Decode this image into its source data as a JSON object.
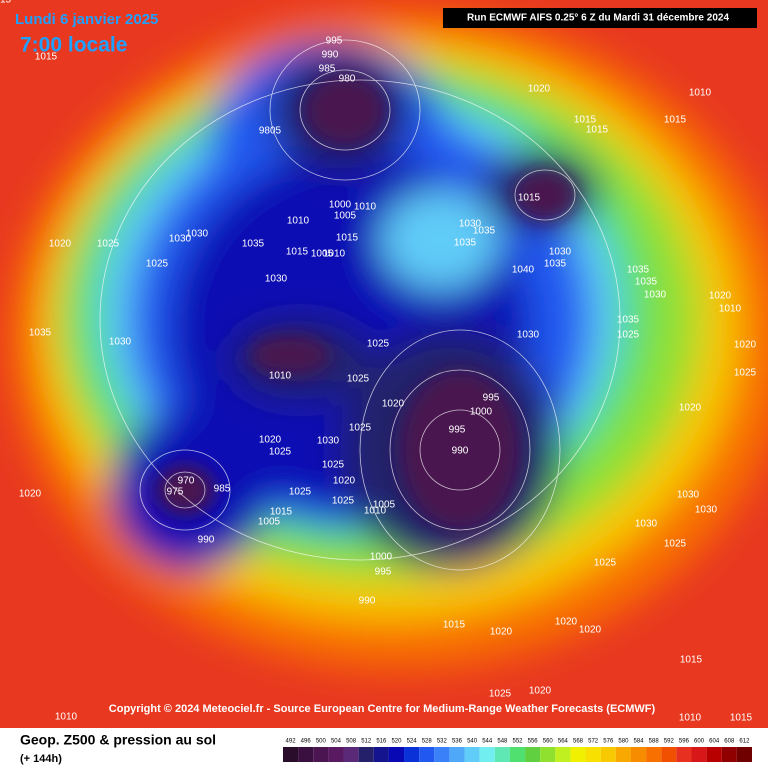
{
  "header": {
    "date": "Lundi 6 janvier 2025",
    "time": "7:00 locale",
    "run": "Run ECMWF AIFS 0.25° 6 Z du Mardi 31 décembre 2024"
  },
  "copyright": "Copyright © 2024 Meteociel.fr - Source European Centre for Medium-Range Weather Forecasts (ECMWF)",
  "footer": {
    "title": "Geop. Z500 & pression au sol",
    "lead": "(+ 144h)"
  },
  "isobar_labels": [
    "995",
    "990",
    "985",
    "980",
    "9805",
    "1015",
    "1020",
    "1010",
    "1015",
    "1015",
    "1015",
    "1000",
    "1005",
    "1010",
    "1015",
    "1030",
    "1035",
    "1035",
    "1040",
    "1035",
    "1030",
    "1015",
    "1020",
    "1025",
    "1025",
    "1030",
    "1030",
    "1035",
    "1030",
    "1010",
    "1005",
    "1010",
    "1015",
    "1025",
    "1030",
    "1025",
    "1020",
    "1030",
    "1010",
    "1025",
    "1020",
    "1025",
    "1025",
    "995",
    "1000",
    "995",
    "990",
    "1020",
    "970",
    "975",
    "985",
    "990",
    "1005",
    "1015",
    "1025",
    "1020",
    "1025",
    "1005",
    "1010",
    "1000",
    "995",
    "990",
    "1035",
    "1030",
    "1035",
    "1035",
    "1030",
    "1035",
    "1025",
    "1025",
    "1020",
    "1030",
    "1030",
    "1030",
    "1025",
    "1025",
    "1020",
    "1015",
    "1020",
    "1020",
    "1015",
    "1025",
    "1010",
    "1020",
    "1010",
    "1020",
    "1010",
    "1020",
    "1015",
    "1015"
  ],
  "scale": {
    "values": [
      492,
      496,
      500,
      504,
      508,
      512,
      516,
      520,
      524,
      528,
      532,
      536,
      540,
      544,
      548,
      552,
      556,
      560,
      564,
      568,
      572,
      576,
      580,
      584,
      588,
      592,
      596,
      600,
      604,
      608,
      612
    ],
    "colors": [
      "#2a0d2a",
      "#3a1040",
      "#4a1550",
      "#5a1a62",
      "#5a2a78",
      "#24206a",
      "#14148e",
      "#0808b4",
      "#0a30d8",
      "#2058f0",
      "#3a80f8",
      "#50a8f8",
      "#60ccf8",
      "#70eef0",
      "#60e8b4",
      "#50e070",
      "#60d040",
      "#90e030",
      "#c0f020",
      "#f0f000",
      "#f8e000",
      "#f8c800",
      "#f8a800",
      "#f88c00",
      "#f87000",
      "#f05000",
      "#e83020",
      "#d81818",
      "#b80000",
      "#900000",
      "#700000"
    ]
  }
}
